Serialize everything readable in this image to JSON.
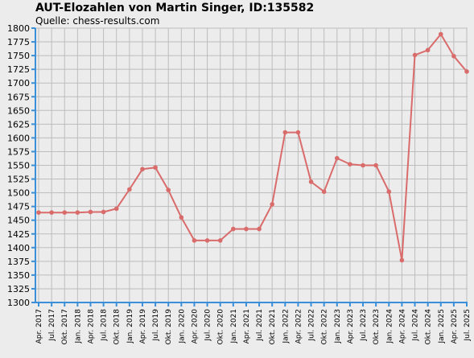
{
  "chart_data": {
    "type": "line",
    "title": "AUT-Elozahlen von Martin Singer, ID:135582",
    "subtitle": "Quelle: chess-results.com",
    "xlabel": "",
    "ylabel": "",
    "ylim": [
      1300,
      1800
    ],
    "ytick_step": 25,
    "grid": true,
    "colors": {
      "line": "#d96b6b",
      "axis": "#3a8fd9",
      "grid": "#bdbdbd",
      "background": "#ececec"
    },
    "categories": [
      "Apr. 2017",
      "Jul. 2017",
      "Okt. 2017",
      "Jan. 2018",
      "Apr. 2018",
      "Jul. 2018",
      "Okt. 2018",
      "Jan. 2019",
      "Apr. 2019",
      "Jul. 2019",
      "Okt. 2019",
      "Jan. 2020",
      "Apr. 2020",
      "Jul. 2020",
      "Okt. 2020",
      "Jan. 2021",
      "Apr. 2021",
      "Jul. 2021",
      "Okt. 2021",
      "Jan. 2022",
      "Apr. 2022",
      "Jul. 2022",
      "Okt. 2022",
      "Jan. 2023",
      "Apr. 2023",
      "Jul. 2023",
      "Okt. 2023",
      "Jan. 2024",
      "Apr. 2024",
      "Jul. 2024",
      "Okt. 2024",
      "Jan. 2025",
      "Apr. 2025",
      "Jul. 2025"
    ],
    "series": [
      {
        "values": [
          1464,
          1464,
          1464,
          1464,
          1465,
          1465,
          1471,
          1506,
          1543,
          1546,
          1505,
          1455,
          1413,
          1413,
          1413,
          1434,
          1434,
          1434,
          1479,
          1610,
          1610,
          1520,
          1502,
          1563,
          1552,
          1550,
          1550,
          1502,
          1377,
          1751,
          1760,
          1789,
          1749,
          1721
        ]
      }
    ]
  }
}
